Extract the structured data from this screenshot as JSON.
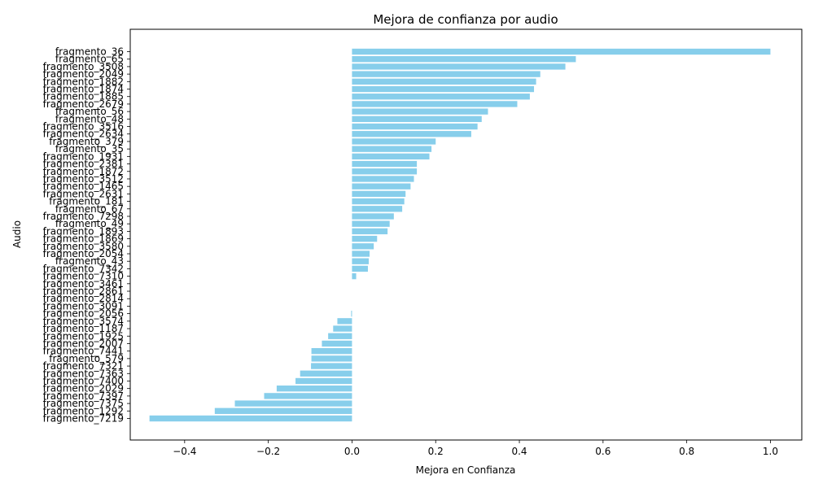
{
  "chart_data": {
    "type": "bar",
    "orientation": "horizontal",
    "title": "Mejora de confianza por audio",
    "xlabel": "Mejora en Confianza",
    "ylabel": "Audio",
    "xlim": [
      -0.53,
      1.075
    ],
    "xticks": [
      -0.4,
      -0.2,
      0.0,
      0.2,
      0.4,
      0.6,
      0.8,
      1.0
    ],
    "xtick_labels": [
      "−0.4",
      "−0.2",
      "0.0",
      "0.2",
      "0.4",
      "0.6",
      "0.8",
      "1.0"
    ],
    "grid": false,
    "bar_color": "#87CEEB",
    "categories": [
      "fragmento_36",
      "fragmento_65",
      "fragmento_3508",
      "fragmento_2049",
      "fragmento_1882",
      "fragmento_1874",
      "fragmento_1885",
      "fragmento_2679",
      "fragmento_56",
      "fragmento_48",
      "fragmento_3516",
      "fragmento_2634",
      "fragmento_379",
      "fragmento_35",
      "fragmento_1931",
      "fragmento_2381",
      "fragmento_1872",
      "fragmento_3512",
      "fragmento_1465",
      "fragmento_2631",
      "fragmento_181",
      "fragmento_67",
      "fragmento_7298",
      "fragmento_49",
      "fragmento_1893",
      "fragmento_1869",
      "fragmento_3580",
      "fragmento_2054",
      "fragmento_43",
      "fragmento_7342",
      "fragmento_7310",
      "fragmento_3461",
      "fragmento_2861",
      "fragmento_2814",
      "fragmento_3091",
      "fragmento_2056",
      "fragmento_3574",
      "fragmento_1187",
      "fragmento_1925",
      "fragmento_2007",
      "fragmento_7441",
      "fragmento_579",
      "fragmento_7321",
      "fragmento_7363",
      "fragmento_7400",
      "fragmento_2029",
      "fragmento_7397",
      "fragmento_7375",
      "fragmento_1292",
      "fragmento_7219"
    ],
    "values": [
      1.0,
      0.535,
      0.51,
      0.45,
      0.44,
      0.435,
      0.425,
      0.395,
      0.325,
      0.31,
      0.3,
      0.285,
      0.2,
      0.19,
      0.185,
      0.155,
      0.155,
      0.148,
      0.14,
      0.128,
      0.125,
      0.12,
      0.1,
      0.09,
      0.085,
      0.06,
      0.052,
      0.042,
      0.04,
      0.038,
      0.01,
      0.0,
      0.0,
      0.0,
      0.0,
      -0.002,
      -0.035,
      -0.045,
      -0.057,
      -0.072,
      -0.097,
      -0.097,
      -0.098,
      -0.124,
      -0.135,
      -0.18,
      -0.21,
      -0.28,
      -0.328,
      -0.484
    ]
  }
}
